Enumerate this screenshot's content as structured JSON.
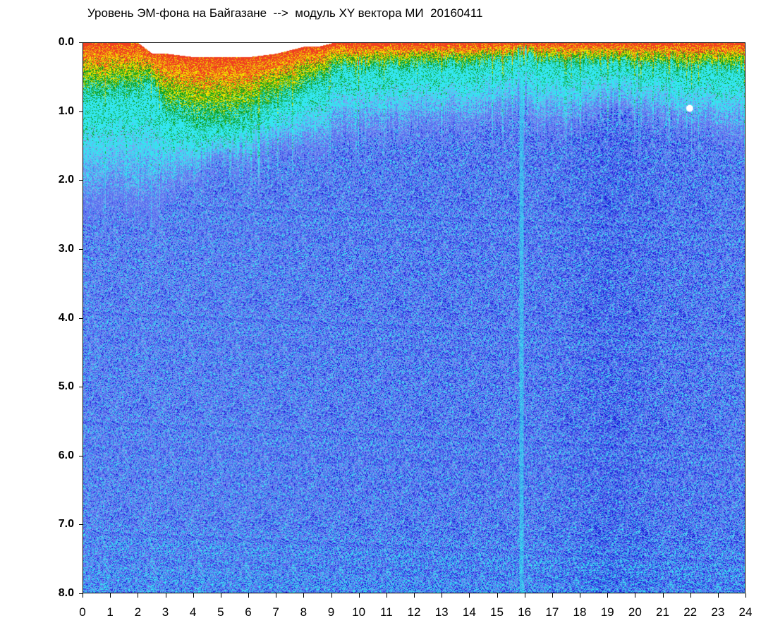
{
  "chart_data": {
    "type": "heatmap",
    "title": "Уровень ЭМ-фона на Байгазане  -->  модуль XY вектора МИ  20160411",
    "x_ticks": [
      "0",
      "1",
      "2",
      "3",
      "4",
      "5",
      "6",
      "7",
      "8",
      "9",
      "10",
      "11",
      "12",
      "13",
      "14",
      "15",
      "16",
      "17",
      "18",
      "19",
      "20",
      "21",
      "22",
      "23",
      "24"
    ],
    "y_ticks": [
      "0.0",
      "1.0",
      "2.0",
      "3.0",
      "4.0",
      "5.0",
      "6.0",
      "7.0",
      "8.0"
    ],
    "xlim": [
      0,
      24
    ],
    "ylim": [
      0,
      8
    ],
    "y_inverted": true,
    "colormap": [
      "#1a1ad8",
      "#5a6ff0",
      "#7fa0f0",
      "#33e6f0",
      "#10a020",
      "#f0e000",
      "#f04020"
    ],
    "intensity_profile": {
      "x": [
        0,
        1,
        2,
        2.5,
        3,
        4,
        5,
        6,
        7,
        8,
        8.5,
        9,
        10,
        11,
        12,
        13,
        14,
        15,
        15.8,
        16,
        16.3,
        17,
        18,
        19,
        20,
        21,
        22,
        23,
        24
      ],
      "high_band_top": [
        0.0,
        0.0,
        0.0,
        0.15,
        0.15,
        0.2,
        0.2,
        0.2,
        0.15,
        0.05,
        0.05,
        0.0,
        0.0,
        0.0,
        0.0,
        0.0,
        0.0,
        0.0,
        0.0,
        0.0,
        0.0,
        0.0,
        0.0,
        0.0,
        0.0,
        0.0,
        0.0,
        0.0,
        0.0
      ],
      "warm_depth": [
        0.8,
        0.8,
        0.75,
        0.6,
        1.1,
        1.2,
        1.3,
        1.1,
        0.9,
        0.7,
        0.6,
        0.45,
        0.4,
        0.4,
        0.35,
        0.35,
        0.35,
        0.3,
        0.2,
        0.1,
        0.25,
        0.3,
        0.3,
        0.3,
        0.35,
        0.35,
        0.4,
        0.4,
        0.4
      ],
      "cyan_depth": [
        2.5,
        2.4,
        2.5,
        2.6,
        2.3,
        2.0,
        1.8,
        1.8,
        1.6,
        1.6,
        1.6,
        1.5,
        1.4,
        1.4,
        1.3,
        1.3,
        1.3,
        1.2,
        1.0,
        1.0,
        1.3,
        1.3,
        1.2,
        1.0,
        1.1,
        1.2,
        1.3,
        1.4,
        1.5
      ],
      "deep_blue": [
        0.3,
        0.35,
        0.35,
        0.3,
        0.35,
        0.35,
        0.35,
        0.35,
        0.4,
        0.4,
        0.4,
        0.45,
        0.45,
        0.45,
        0.5,
        0.5,
        0.5,
        0.5,
        0.45,
        0.45,
        0.5,
        0.55,
        0.7,
        0.85,
        0.75,
        0.6,
        0.6,
        0.55,
        0.5
      ]
    },
    "notable_features": [
      {
        "label": "narrow quiet band",
        "x": 15.9
      },
      {
        "label": "bright spot",
        "x": 22.0,
        "y": 0.95
      }
    ]
  }
}
